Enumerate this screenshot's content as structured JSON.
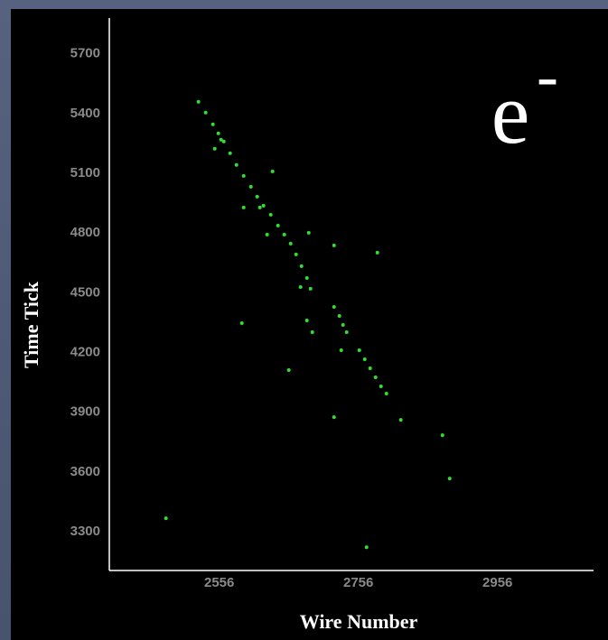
{
  "chart_data": {
    "type": "scatter",
    "x_label": "Wire Number",
    "y_label": "Time Tick",
    "annotation": "e",
    "annotation_superscript": "-",
    "color": "#33dd33",
    "xlim": [
      2398,
      3094
    ],
    "ylim": [
      3105,
      5880
    ],
    "xticks": [
      2556,
      2756,
      2956
    ],
    "yticks": [
      3300,
      3600,
      3900,
      4200,
      4500,
      4800,
      5100,
      5400,
      5700
    ],
    "x": [
      2526.1,
      2536.5,
      2546.9,
      2554.7,
      2562.5,
      2571.6,
      2580.7,
      2591.1,
      2601.5,
      2610.5,
      2619.6,
      2630.0,
      2640.4,
      2649.5,
      2658.6,
      2666.4,
      2674.2,
      2682.0,
      2687.2,
      2549.5,
      2558.6,
      2624.8,
      2614.4,
      2721.0,
      2728.7,
      2733.9,
      2739.1,
      2757.3,
      2765.1,
      2772.9,
      2780.7,
      2788.5,
      2796.3,
      2684.6,
      2721.0,
      2783.3,
      2632.6,
      2682.0,
      2689.8,
      2731.3,
      2656.0,
      2817.0,
      2721.0,
      2887.2,
      2767.7,
      2479.4,
      2588.5,
      2672.9,
      2876.8,
      2591.1
    ],
    "y": [
      5459.5,
      5405.0,
      5346.0,
      5300.6,
      5259.8,
      5200.8,
      5141.8,
      5087.3,
      5032.8,
      4982.9,
      4937.5,
      4892.1,
      4837.7,
      4792.3,
      4746.9,
      4692.4,
      4633.4,
      4574.4,
      4520.0,
      5223.4,
      5268.8,
      4792.3,
      4928.4,
      4429.2,
      4383.8,
      4338.4,
      4302.1,
      4211.3,
      4165.9,
      4120.6,
      4075.2,
      4029.8,
      3993.5,
      4801.4,
      4737.8,
      4701.5,
      5110.0,
      4361.1,
      4302.1,
      4211.3,
      4111.5,
      3861.9,
      3875.5,
      3566.9,
      3221.9,
      3367.2,
      4347.5,
      4529.0,
      3784.7,
      4928.4
    ]
  }
}
